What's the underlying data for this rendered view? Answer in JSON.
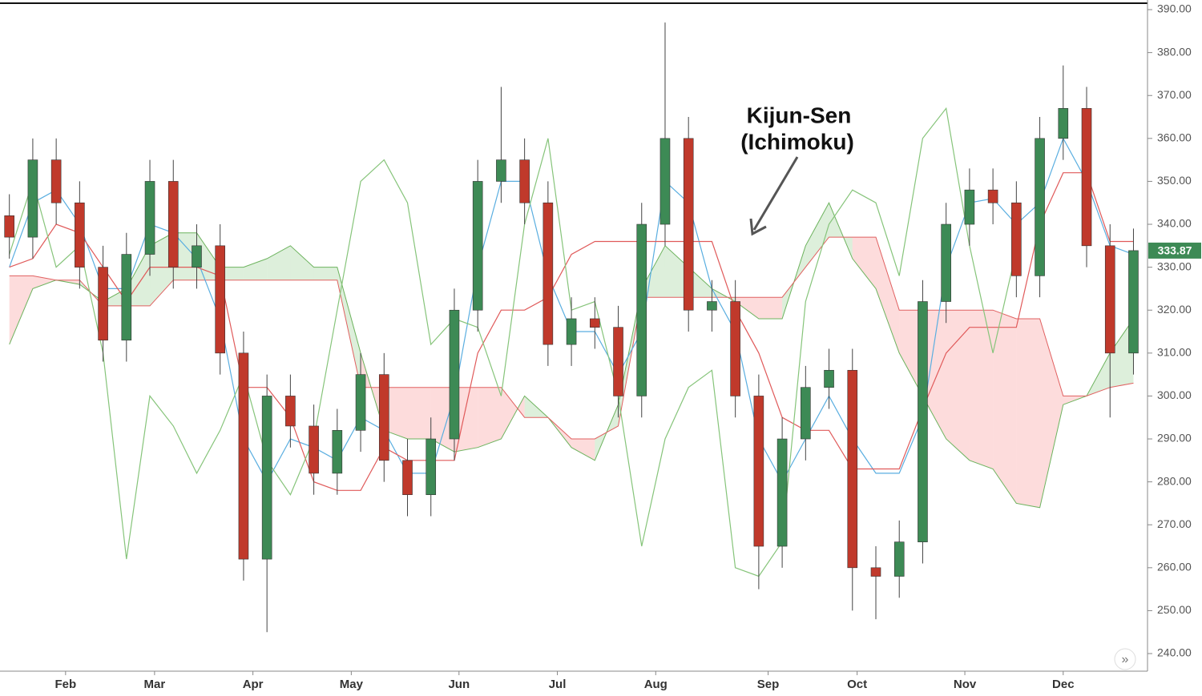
{
  "chart_data": {
    "type": "candlestick",
    "annotation": [
      "Kijun-Sen",
      "(Ichimoku)"
    ],
    "x": [
      0,
      5,
      10,
      15,
      20,
      25,
      30,
      35,
      40,
      45,
      50,
      55,
      60,
      65,
      70,
      75,
      80,
      85,
      90,
      95,
      100,
      105,
      110,
      115,
      120,
      125,
      130,
      135,
      140,
      145,
      150,
      155,
      160,
      165,
      170,
      175,
      180,
      185,
      190,
      195,
      200,
      205,
      210,
      215,
      220,
      225,
      230,
      235,
      240
    ],
    "open": [
      342,
      337,
      355,
      345,
      330,
      313,
      333,
      350,
      330,
      335,
      310,
      262,
      300,
      293,
      282,
      292,
      305,
      285,
      277,
      290,
      320,
      350,
      355,
      345,
      312,
      318,
      316,
      300,
      340,
      360,
      320,
      322,
      300,
      265,
      290,
      302,
      306,
      260,
      258,
      266,
      322,
      340,
      348,
      345,
      328,
      360,
      367,
      335,
      310
    ],
    "high": [
      347,
      360,
      360,
      350,
      335,
      338,
      355,
      355,
      340,
      340,
      315,
      305,
      305,
      298,
      297,
      310,
      310,
      290,
      295,
      325,
      355,
      372,
      360,
      350,
      323,
      323,
      321,
      345,
      387,
      365,
      327,
      327,
      305,
      295,
      307,
      311,
      311,
      265,
      271,
      327,
      345,
      353,
      353,
      350,
      365,
      377,
      372,
      340,
      339
    ],
    "low": [
      332,
      332,
      340,
      325,
      308,
      308,
      328,
      325,
      325,
      305,
      257,
      245,
      288,
      277,
      277,
      287,
      280,
      272,
      272,
      285,
      315,
      345,
      340,
      307,
      307,
      311,
      295,
      295,
      335,
      315,
      315,
      295,
      255,
      260,
      285,
      297,
      250,
      248,
      253,
      261,
      317,
      335,
      340,
      323,
      323,
      355,
      330,
      295,
      305
    ],
    "close": [
      337,
      355,
      345,
      330,
      313,
      333,
      350,
      330,
      335,
      310,
      262,
      300,
      293,
      282,
      292,
      305,
      285,
      277,
      290,
      320,
      350,
      355,
      345,
      312,
      318,
      316,
      300,
      340,
      360,
      320,
      322,
      300,
      265,
      290,
      302,
      306,
      260,
      258,
      266,
      322,
      340,
      348,
      345,
      328,
      360,
      367,
      335,
      310,
      333.87
    ],
    "up_color": "#3d8a55",
    "down_color": "#c0392b",
    "lines": [
      {
        "color": "#5aaee0",
        "values": [
          330,
          345,
          348,
          340,
          325,
          325,
          340,
          338,
          332,
          318,
          290,
          280,
          290,
          288,
          285,
          295,
          292,
          282,
          282,
          300,
          330,
          350,
          350,
          328,
          315,
          315,
          305,
          315,
          350,
          345,
          325,
          315,
          290,
          280,
          290,
          300,
          290,
          282,
          282,
          295,
          330,
          345,
          346,
          340,
          345,
          360,
          350,
          335,
          333
        ]
      },
      {
        "color": "#e05a5a",
        "values": [
          330,
          332,
          340,
          338,
          330,
          322,
          330,
          330,
          330,
          328,
          302,
          302,
          295,
          280,
          278,
          278,
          288,
          285,
          285,
          285,
          310,
          320,
          320,
          323,
          333,
          336,
          336,
          336,
          336,
          336,
          336,
          320,
          310,
          295,
          292,
          292,
          283,
          283,
          283,
          297,
          310,
          316,
          316,
          316,
          340,
          352,
          352,
          336,
          336
        ]
      },
      {
        "color": "#86c47a",
        "values": [
          333,
          350,
          330,
          335,
          310,
          262,
          300,
          293,
          282,
          292,
          305,
          285,
          277,
          290,
          320,
          350,
          355,
          345,
          312,
          318,
          316,
          300,
          340,
          360,
          320,
          322,
          300,
          265,
          290,
          302,
          306,
          260,
          258,
          266,
          322,
          340,
          348,
          345,
          328,
          360,
          367,
          335,
          310,
          333.87,
          null,
          null,
          null,
          null,
          null
        ]
      }
    ],
    "cloud": {
      "a": {
        "color": "#6db35e",
        "values": [
          312,
          325,
          327,
          326,
          322,
          325,
          335,
          338,
          338,
          330,
          330,
          332,
          335,
          330,
          330,
          310,
          292,
          290,
          290,
          287,
          288,
          290,
          300,
          295,
          288,
          285,
          298,
          325,
          335,
          330,
          325,
          322,
          318,
          318,
          335,
          345,
          332,
          325,
          310,
          300,
          290,
          285,
          283,
          275,
          274,
          298,
          300,
          310,
          318
        ]
      },
      "b": {
        "color": "#e06060",
        "values": [
          328,
          328,
          327,
          327,
          321,
          321,
          321,
          327,
          327,
          327,
          327,
          327,
          327,
          327,
          327,
          302,
          302,
          302,
          302,
          302,
          302,
          302,
          295,
          295,
          290,
          290,
          293,
          323,
          323,
          323,
          323,
          323,
          323,
          323,
          330,
          337,
          337,
          337,
          320,
          320,
          320,
          320,
          320,
          318,
          318,
          300,
          300,
          302,
          303
        ]
      },
      "up_fill": "rgba(120,190,110,0.25)",
      "down_fill": "rgba(250,140,140,0.3)"
    },
    "xlim": [
      -2,
      243
    ],
    "xticks": [
      {
        "value": 12,
        "label": "Feb"
      },
      {
        "value": 31,
        "label": "Mar"
      },
      {
        "value": 52,
        "label": "Apr"
      },
      {
        "value": 73,
        "label": "May"
      },
      {
        "value": 96,
        "label": "Jun"
      },
      {
        "value": 117,
        "label": "Jul"
      },
      {
        "value": 138,
        "label": "Aug"
      },
      {
        "value": 162,
        "label": "Sep"
      },
      {
        "value": 181,
        "label": "Oct"
      },
      {
        "value": 204,
        "label": "Nov"
      },
      {
        "value": 225,
        "label": "Dec"
      }
    ],
    "ylim": [
      235.9,
      391.5
    ],
    "yticks": [
      {
        "value": 240,
        "label": "240.00"
      },
      {
        "value": 250,
        "label": "250.00"
      },
      {
        "value": 260,
        "label": "260.00"
      },
      {
        "value": 270,
        "label": "270.00"
      },
      {
        "value": 280,
        "label": "280.00"
      },
      {
        "value": 290,
        "label": "290.00"
      },
      {
        "value": 300,
        "label": "300.00"
      },
      {
        "value": 310,
        "label": "310.00"
      },
      {
        "value": 320,
        "label": "320.00"
      },
      {
        "value": 330,
        "label": "330.00"
      },
      {
        "value": 340,
        "label": "340.00"
      },
      {
        "value": 350,
        "label": "350.00"
      },
      {
        "value": 360,
        "label": "360.00"
      },
      {
        "value": 370,
        "label": "370.00"
      },
      {
        "value": 380,
        "label": "380.00"
      },
      {
        "value": 390,
        "label": "390.00"
      }
    ]
  }
}
